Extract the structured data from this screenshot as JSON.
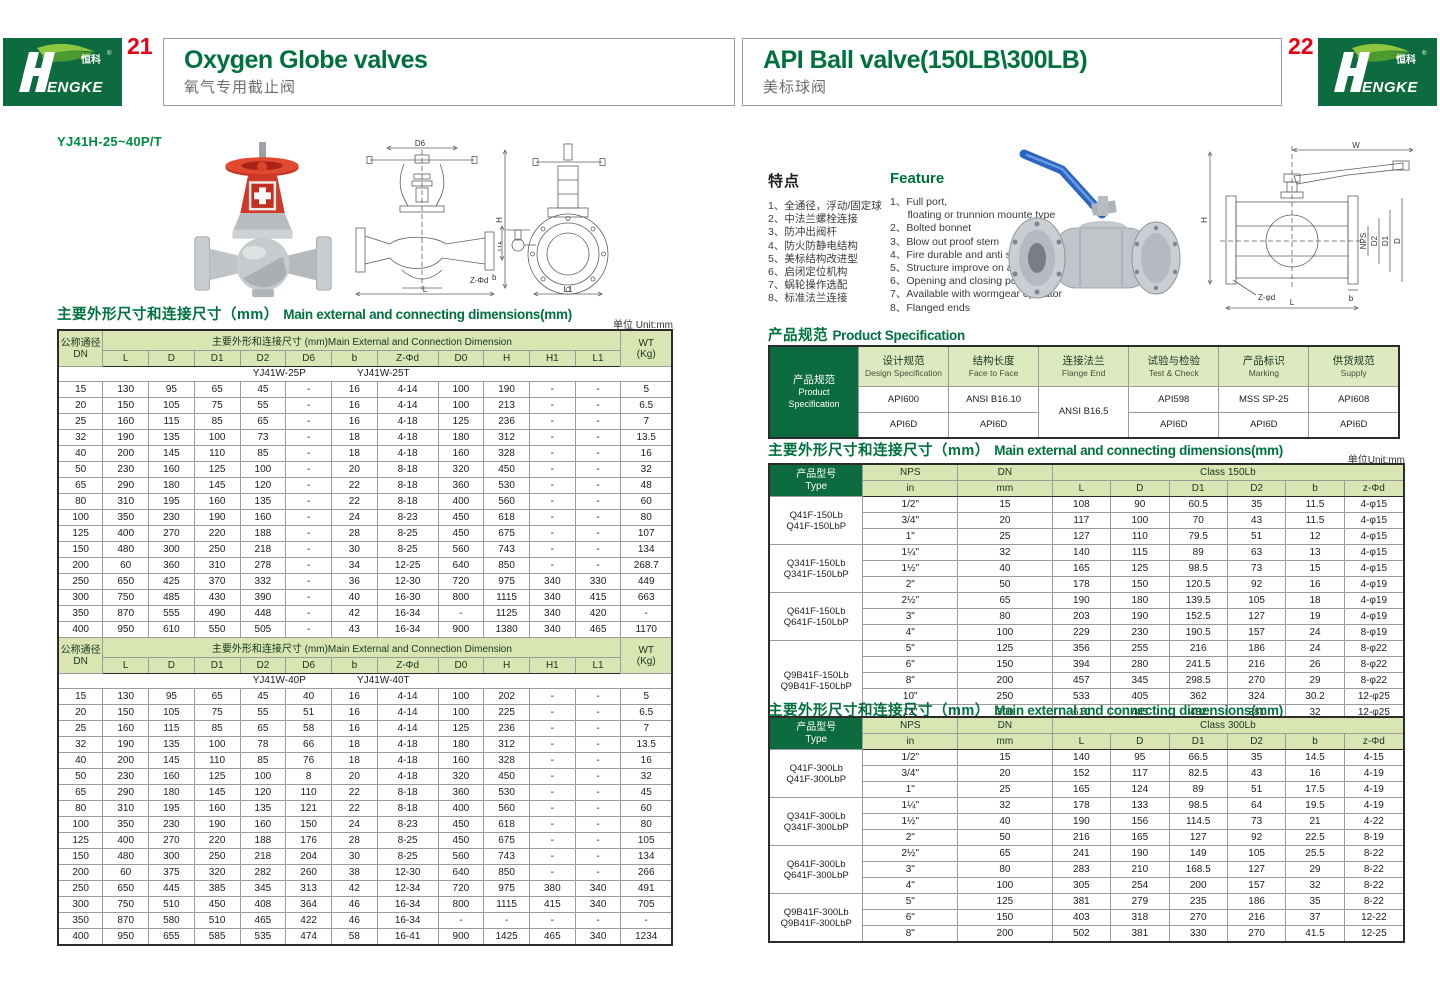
{
  "brand": {
    "logo_cn": "恒科",
    "logo_reg": "®",
    "logo_en": "ENGKE"
  },
  "page_left": {
    "page_number": "21",
    "title_en": "Oxygen Globe valves",
    "title_zh": "氧气专用截止阀",
    "model": "YJ41H-25~40P/T",
    "dims_title_zh": "主要外形尺寸和连接尺寸（mm）",
    "dims_title_en": "Main external and connecting dimensions(mm)",
    "unit": "单位 Unit:mm",
    "table": {
      "dn_zh": "公称通径",
      "dn_en": "DN",
      "group_header": "主要外形和连接尺寸 (mm)Main External and Connection Dimension",
      "wt_line1": "WT",
      "wt_line2": "(Kg)",
      "columns": [
        "L",
        "D",
        "D1",
        "D2",
        "D6",
        "b",
        "Z-Φd",
        "D0",
        "H",
        "H1",
        "L1"
      ],
      "part1": {
        "models": [
          "YJ41W-25P",
          "YJ41W-25T"
        ],
        "rows": [
          [
            "15",
            "130",
            "95",
            "65",
            "45",
            "-",
            "16",
            "4-14",
            "100",
            "190",
            "-",
            "-",
            "5"
          ],
          [
            "20",
            "150",
            "105",
            "75",
            "55",
            "-",
            "16",
            "4-14",
            "100",
            "213",
            "-",
            "-",
            "6.5"
          ],
          [
            "25",
            "160",
            "115",
            "85",
            "65",
            "-",
            "16",
            "4-18",
            "125",
            "236",
            "-",
            "-",
            "7"
          ],
          [
            "32",
            "190",
            "135",
            "100",
            "73",
            "-",
            "18",
            "4-18",
            "180",
            "312",
            "-",
            "-",
            "13.5"
          ],
          [
            "40",
            "200",
            "145",
            "110",
            "85",
            "-",
            "18",
            "4-18",
            "160",
            "328",
            "-",
            "-",
            "16"
          ],
          [
            "50",
            "230",
            "160",
            "125",
            "100",
            "-",
            "20",
            "8-18",
            "320",
            "450",
            "-",
            "-",
            "32"
          ],
          [
            "65",
            "290",
            "180",
            "145",
            "120",
            "-",
            "22",
            "8-18",
            "360",
            "530",
            "-",
            "-",
            "48"
          ],
          [
            "80",
            "310",
            "195",
            "160",
            "135",
            "-",
            "22",
            "8-18",
            "400",
            "560",
            "-",
            "-",
            "60"
          ],
          [
            "100",
            "350",
            "230",
            "190",
            "160",
            "-",
            "24",
            "8-23",
            "450",
            "618",
            "-",
            "-",
            "80"
          ],
          [
            "125",
            "400",
            "270",
            "220",
            "188",
            "-",
            "28",
            "8-25",
            "450",
            "675",
            "-",
            "-",
            "107"
          ],
          [
            "150",
            "480",
            "300",
            "250",
            "218",
            "-",
            "30",
            "8-25",
            "560",
            "743",
            "-",
            "-",
            "134"
          ],
          [
            "200",
            "60",
            "360",
            "310",
            "278",
            "-",
            "34",
            "12-25",
            "640",
            "850",
            "-",
            "-",
            "268.7"
          ],
          [
            "250",
            "650",
            "425",
            "370",
            "332",
            "-",
            "36",
            "12-30",
            "720",
            "975",
            "340",
            "330",
            "449"
          ],
          [
            "300",
            "750",
            "485",
            "430",
            "390",
            "-",
            "40",
            "16-30",
            "800",
            "1115",
            "340",
            "415",
            "663"
          ],
          [
            "350",
            "870",
            "555",
            "490",
            "448",
            "-",
            "42",
            "16-34",
            "-",
            "1125",
            "340",
            "420",
            "-"
          ],
          [
            "400",
            "950",
            "610",
            "550",
            "505",
            "-",
            "43",
            "16-34",
            "900",
            "1380",
            "340",
            "465",
            "1170"
          ]
        ]
      },
      "part2": {
        "models": [
          "YJ41W-40P",
          "YJ41W-40T"
        ],
        "rows": [
          [
            "15",
            "130",
            "95",
            "65",
            "45",
            "40",
            "16",
            "4-14",
            "100",
            "202",
            "-",
            "-",
            "5"
          ],
          [
            "20",
            "150",
            "105",
            "75",
            "55",
            "51",
            "16",
            "4-14",
            "100",
            "225",
            "-",
            "-",
            "6.5"
          ],
          [
            "25",
            "160",
            "115",
            "85",
            "65",
            "58",
            "16",
            "4-14",
            "125",
            "236",
            "-",
            "-",
            "7"
          ],
          [
            "32",
            "190",
            "135",
            "100",
            "78",
            "66",
            "18",
            "4-18",
            "180",
            "312",
            "-",
            "-",
            "13.5"
          ],
          [
            "40",
            "200",
            "145",
            "110",
            "85",
            "76",
            "18",
            "4-18",
            "160",
            "328",
            "-",
            "-",
            "16"
          ],
          [
            "50",
            "230",
            "160",
            "125",
            "100",
            "8",
            "20",
            "4-18",
            "320",
            "450",
            "-",
            "-",
            "32"
          ],
          [
            "65",
            "290",
            "180",
            "145",
            "120",
            "110",
            "22",
            "8-18",
            "360",
            "530",
            "-",
            "-",
            "45"
          ],
          [
            "80",
            "310",
            "195",
            "160",
            "135",
            "121",
            "22",
            "8-18",
            "400",
            "560",
            "-",
            "-",
            "60"
          ],
          [
            "100",
            "350",
            "230",
            "190",
            "160",
            "150",
            "24",
            "8-23",
            "450",
            "618",
            "-",
            "-",
            "80"
          ],
          [
            "125",
            "400",
            "270",
            "220",
            "188",
            "176",
            "28",
            "8-25",
            "450",
            "675",
            "-",
            "-",
            "105"
          ],
          [
            "150",
            "480",
            "300",
            "250",
            "218",
            "204",
            "30",
            "8-25",
            "560",
            "743",
            "-",
            "-",
            "134"
          ],
          [
            "200",
            "60",
            "375",
            "320",
            "282",
            "260",
            "38",
            "12-30",
            "640",
            "850",
            "-",
            "-",
            "266"
          ],
          [
            "250",
            "650",
            "445",
            "385",
            "345",
            "313",
            "42",
            "12-34",
            "720",
            "975",
            "380",
            "340",
            "491"
          ],
          [
            "300",
            "750",
            "510",
            "450",
            "408",
            "364",
            "46",
            "16-34",
            "800",
            "1115",
            "415",
            "340",
            "705"
          ],
          [
            "350",
            "870",
            "580",
            "510",
            "465",
            "422",
            "46",
            "16-34",
            "-",
            "-",
            "-",
            "-",
            "-"
          ],
          [
            "400",
            "950",
            "655",
            "585",
            "535",
            "474",
            "58",
            "16-41",
            "900",
            "1425",
            "465",
            "340",
            "1234"
          ]
        ]
      }
    },
    "drawing_labels": {
      "d6": "D6",
      "h": "H",
      "l": "L",
      "zfd": "Z-Φd",
      "b": "b",
      "h1": "H1",
      "l1": "L1"
    }
  },
  "page_right": {
    "page_number": "22",
    "title_en": "API Ball valve(150LB\\300LB)",
    "title_zh": "美标球阀",
    "features_zh": {
      "title": "特点",
      "items": [
        "1、全通径，浮动/固定球",
        "2、中法兰螺栓连接",
        "3、防冲出阀杆",
        "4、防火防静电结构",
        "5、美标结构改进型",
        "6、启闭定位机构",
        "7、蜗轮操作选配",
        "8、标准法兰连接"
      ]
    },
    "features_en": {
      "title": "Feature",
      "items": [
        "1、Full port,",
        "      floating or trunnion mounte type",
        "2、Bolted bonnet",
        "3、Blow out proof stem",
        "4、Fire durable and anti static safety",
        "5、Structure improve on api",
        "6、Opening and closing position",
        "7、Available with wormgear operator",
        "8、Flanged ends"
      ]
    },
    "spec": {
      "title_zh": "产品规范",
      "title_en": "Product Specification",
      "corner_zh": "产品规范",
      "corner_en1": "Product",
      "corner_en2": "Specification",
      "headers": [
        {
          "zh": "设计规范",
          "en": "Design Specification"
        },
        {
          "zh": "结构长度",
          "en": "Face to Face"
        },
        {
          "zh": "连接法兰",
          "en": "Flange End"
        },
        {
          "zh": "试验与检验",
          "en": "Test & Check"
        },
        {
          "zh": "产品标识",
          "en": "Marking"
        },
        {
          "zh": "供货规范",
          "en": "Supply"
        }
      ],
      "row1": [
        "API600",
        "ANSI B16.10",
        "ANSI B16.5",
        "API598",
        "MSS SP-25",
        "API608"
      ],
      "row2": [
        "API6D",
        "API6D",
        "API6D",
        "API6D",
        "API6D"
      ]
    },
    "dims_title_zh": "主要外形尺寸和连接尺寸（mm）",
    "dims_title_en": "Main external and connecting dimensions(mm)",
    "unit": "单位Unit:mm",
    "table150": {
      "type_zh": "产品型号",
      "type_en": "Type",
      "nps": "NPS",
      "nps_unit": "in",
      "dn": "DN",
      "dn_unit": "mm",
      "class_label": "Class 150Lb",
      "columns": [
        "L",
        "D",
        "D1",
        "D2",
        "b",
        "z-Φd"
      ],
      "groups": [
        {
          "labels": [
            "Q41F-150Lb",
            "Q41F-150LbP"
          ],
          "span": 3
        },
        {
          "labels": [
            "Q341F-150Lb",
            "Q341F-150LbP"
          ],
          "span": 3
        },
        {
          "labels": [
            "Q641F-150Lb",
            "Q641F-150LbP"
          ],
          "span": 3
        },
        {
          "labels": [
            "Q9B41F-150Lb",
            "Q9B41F-150LbP"
          ],
          "span": 5
        }
      ],
      "rows": [
        [
          "1/2\"",
          "15",
          "108",
          "90",
          "60.5",
          "35",
          "11.5",
          "4-φ15"
        ],
        [
          "3/4\"",
          "20",
          "117",
          "100",
          "70",
          "43",
          "11.5",
          "4-φ15"
        ],
        [
          "1\"",
          "25",
          "127",
          "110",
          "79.5",
          "51",
          "12",
          "4-φ15"
        ],
        [
          "1¼\"",
          "32",
          "140",
          "115",
          "89",
          "63",
          "13",
          "4-φ15"
        ],
        [
          "1½\"",
          "40",
          "165",
          "125",
          "98.5",
          "73",
          "15",
          "4-φ15"
        ],
        [
          "2\"",
          "50",
          "178",
          "150",
          "120.5",
          "92",
          "16",
          "4-φ19"
        ],
        [
          "2½\"",
          "65",
          "190",
          "180",
          "139.5",
          "105",
          "18",
          "4-φ19"
        ],
        [
          "3\"",
          "80",
          "203",
          "190",
          "152.5",
          "127",
          "19",
          "4-φ19"
        ],
        [
          "4\"",
          "100",
          "229",
          "230",
          "190.5",
          "157",
          "24",
          "8-φ19"
        ],
        [
          "5\"",
          "125",
          "356",
          "255",
          "216",
          "186",
          "24",
          "8-φ22"
        ],
        [
          "6\"",
          "150",
          "394",
          "280",
          "241.5",
          "216",
          "26",
          "8-φ22"
        ],
        [
          "8\"",
          "200",
          "457",
          "345",
          "298.5",
          "270",
          "29",
          "8-φ22"
        ],
        [
          "10\"",
          "250",
          "533",
          "405",
          "362",
          "324",
          "30.2",
          "12-φ25"
        ],
        [
          "12\"",
          "300",
          "610",
          "485",
          "432",
          "381",
          "32",
          "12-φ25"
        ]
      ]
    },
    "table300": {
      "class_label": "Class 300Lb",
      "columns": [
        "L",
        "D",
        "D1",
        "D2",
        "b",
        "z-Φd"
      ],
      "groups": [
        {
          "labels": [
            "Q41F-300Lb",
            "Q41F-300LbP"
          ],
          "span": 3
        },
        {
          "labels": [
            "Q341F-300Lb",
            "Q341F-300LbP"
          ],
          "span": 3
        },
        {
          "labels": [
            "Q641F-300Lb",
            "Q641F-300LbP"
          ],
          "span": 3
        },
        {
          "labels": [
            "Q9B41F-300Lb",
            "Q9B41F-300LbP"
          ],
          "span": 3
        }
      ],
      "rows": [
        [
          "1/2\"",
          "15",
          "140",
          "95",
          "66.5",
          "35",
          "14.5",
          "4-15"
        ],
        [
          "3/4\"",
          "20",
          "152",
          "117",
          "82.5",
          "43",
          "16",
          "4-19"
        ],
        [
          "1\"",
          "25",
          "165",
          "124",
          "89",
          "51",
          "17.5",
          "4-19"
        ],
        [
          "1¼\"",
          "32",
          "178",
          "133",
          "98.5",
          "64",
          "19.5",
          "4-19"
        ],
        [
          "1½\"",
          "40",
          "190",
          "156",
          "114.5",
          "73",
          "21",
          "4-22"
        ],
        [
          "2\"",
          "50",
          "216",
          "165",
          "127",
          "92",
          "22.5",
          "8-19"
        ],
        [
          "2½\"",
          "65",
          "241",
          "190",
          "149",
          "105",
          "25.5",
          "8-22"
        ],
        [
          "3\"",
          "80",
          "283",
          "210",
          "168.5",
          "127",
          "29",
          "8-22"
        ],
        [
          "4\"",
          "100",
          "305",
          "254",
          "200",
          "157",
          "32",
          "8-22"
        ],
        [
          "5\"",
          "125",
          "381",
          "279",
          "235",
          "186",
          "35",
          "8-22"
        ],
        [
          "6\"",
          "150",
          "403",
          "318",
          "270",
          "216",
          "37",
          "12-22"
        ],
        [
          "8\"",
          "200",
          "502",
          "381",
          "330",
          "270",
          "41.5",
          "12-25"
        ]
      ]
    },
    "drawing_labels": {
      "w": "W",
      "h": "H",
      "nps": "NPS",
      "d2": "D2",
      "d1": "D1",
      "d": "D",
      "zfd": "Z-φd",
      "b": "b",
      "l": "L"
    }
  }
}
